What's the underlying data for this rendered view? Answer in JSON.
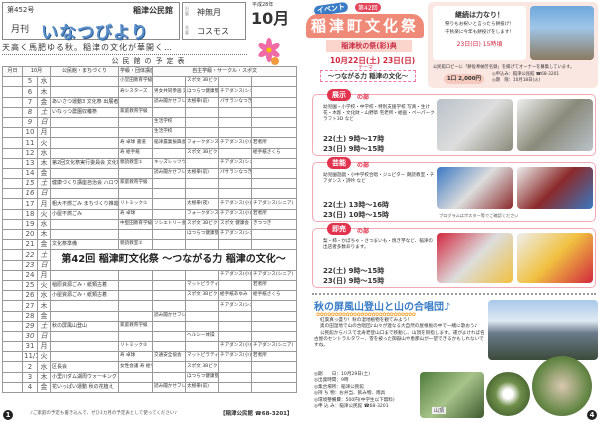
{
  "left": {
    "issue": "第452号",
    "kominkan": "稲津公民館",
    "gekkan": "月刊",
    "title": "いなつびより",
    "calendar": {
      "month_label": "旧暦",
      "month_value": "神無月",
      "flower_label": "花暦",
      "flower_value": "コスモス",
      "era": "平成28年",
      "month": "10月"
    },
    "slogan": "天高く馬肥ゆる秋。稲津の文化が華開く…",
    "schedule_title": "公民館の予定表",
    "table": {
      "headers": [
        "月日",
        "10月",
        "",
        "公民館・まちづくり",
        "学級・団体講座",
        "自主学級・サークル・スポ文"
      ],
      "rows": [
        [
          "5",
          "水",
          "",
          "小堂田教育学級 家庭教育学級",
          "",
          "スポ文 3Bビクビー",
          "",
          ""
        ],
        [
          "6",
          "木",
          "",
          "寿シスターズ",
          "男女共同参画 実践講座",
          "ほつらつ健康塾",
          "チアダンス(シニア)",
          ""
        ],
        [
          "7",
          "金",
          "あいさつ運動3 文化祭 出展者会",
          "",
          "読み聞かせフレッシュ部",
          "太極拳(前)",
          "パサランなつぎ",
          ""
        ],
        [
          "8",
          "土",
          "いなっつ農園収穫祭",
          "家庭教育学級",
          "",
          "",
          "",
          ""
        ],
        [
          "9",
          "日",
          "",
          "",
          "生活学校",
          "",
          "",
          ""
        ],
        [
          "10",
          "月",
          "",
          "",
          "生活学校",
          "",
          "",
          ""
        ],
        [
          "11",
          "火",
          "",
          "寿 卓球 書道",
          "稲津農業振興会",
          "フォークダンス マットピラティス",
          "チアダンス(小)",
          "若者所"
        ],
        [
          "12",
          "水",
          "",
          "寿 絵手紙",
          "",
          "スポ文 3Bビクビー",
          "",
          "絵手紙さくら"
        ],
        [
          "13",
          "木",
          "第2回文化祭実行委員会 文化祭 展示搬入",
          "親読教室①",
          "キッズレッツウォーク",
          "",
          "チアダンス(シニア)",
          ""
        ],
        [
          "14",
          "金",
          "",
          "",
          "読み聞かせフレッシュ部",
          "太極拳(前)",
          "パサランなつぎ",
          ""
        ],
        [
          "15",
          "土",
          "健康づくり講座自治会 ハロウィンのEクッキング",
          "家庭教育学級",
          "",
          "",
          "",
          ""
        ],
        [
          "16",
          "日",
          "",
          "",
          "",
          "",
          "",
          ""
        ],
        [
          "17",
          "月",
          "粗大不燃ごみ まちづくり推進委員会",
          "リトミック①",
          "",
          "太極拳(夜)",
          "チアダンス(小)",
          "チアダンス(シニア)"
        ],
        [
          "18",
          "火",
          "小屋不燃ごみ",
          "寿 卓球",
          "",
          "フォークダンス マットピラティス",
          "チアダンス(小)",
          "若者所"
        ],
        [
          "19",
          "水",
          "",
          "中堅田教育学級 寿 絵手紙",
          "ソシエトリー会議",
          "スポ文 3Bビクビー",
          "スポ文 健康会",
          "きつつき"
        ],
        [
          "20",
          "木",
          "",
          "",
          "",
          "ほつらつ健康塾",
          "チアダンス(シニア)",
          ""
        ],
        [
          "21",
          "金",
          "文化祭準備",
          "親読教室②",
          "",
          "",
          "",
          ""
        ],
        [
          "22",
          "土"
        ],
        [
          "23",
          "日"
        ],
        [
          "24",
          "月",
          "",
          "",
          "",
          "",
          "チアダンス(小)",
          "チアダンス(シニア)"
        ],
        [
          "25",
          "火",
          "稲原資源ごみ・紙類古着",
          "",
          "",
          "マットピラティス",
          "",
          "若者所"
        ],
        [
          "26",
          "水",
          "小屋資源ごみ・紙類古着",
          "",
          "",
          "スポ文 3Bビクビー",
          "絵手紙あゆみ",
          "絵手紙さくら"
        ],
        [
          "27",
          "木",
          "",
          "",
          "",
          "",
          "チアダンス(シニア)",
          ""
        ],
        [
          "28",
          "金",
          "",
          "",
          "読み聞かせフレッシュ部",
          "",
          "",
          ""
        ],
        [
          "29",
          "土",
          "秋の屏風山登山",
          "家庭教育学級",
          "",
          "",
          "",
          ""
        ],
        [
          "30",
          "日",
          "",
          "",
          "",
          "ヘルシー体操",
          "",
          ""
        ],
        [
          "31",
          "月",
          "",
          "リトミック②",
          "",
          "",
          "チアダンス(小)",
          "チアダンス(シニア)"
        ],
        [
          "11/1",
          "火",
          "",
          "寿 卓球",
          "交通安全協会",
          "マットピラティス",
          "チアダンス(小)",
          "若者所"
        ],
        [
          "2",
          "水",
          "区長会",
          "女性会議 寿 絵手紙",
          "",
          "スポ文 3Bビクビー",
          "",
          ""
        ],
        [
          "3",
          "木",
          "小里川ダム湖周ウォーキング",
          "",
          "",
          "ほつらつ健康塾",
          "",
          ""
        ],
        [
          "4",
          "金",
          "花いっぱい運動 秋の花植え",
          "",
          "読み聞かせフレッシュ部",
          "太極拳(前)",
          "",
          ""
        ]
      ],
      "banner": "第42回 稲津町文化祭 〜つながる力 稲津の文化〜"
    },
    "footer_note": "♪ご家庭の予定も書き込んで、ぜひ1カ月の予定表として使ってください♪",
    "footer_contact": "【稲津公民館 ☎68-3201】",
    "page_number": "1"
  },
  "right": {
    "event_label": "イベント",
    "edition": "第42回",
    "festival": "稲津町文化祭",
    "subtitle": "稲津秋の祭(彩)典",
    "dates": "10月22日(土) 23日(日)",
    "theme_label": "テーマ",
    "theme": "〜つながる力 稲津の文化〜",
    "mochi": {
      "heading": "継続は力なり！",
      "text1": "祭りもお祝いと言ったら餅投げ！",
      "text2": "千秋楽に今年も餅投げをします！",
      "time": "23日(日) 15時頃",
      "note": "公民館ロビーに「餅投奉納芳名録」を掲げてオーナーを募集しています。",
      "price": "1口 2,000円",
      "apply": "◎申込み：稲津公民館 ☎68-3201",
      "deadline": "◎期　限：10月18日(火)"
    },
    "sections": [
      {
        "badge": "展示",
        "suffix": "の部",
        "desc": "幼児園・小学校・中学校・特別支援学校 写真・生け花・木彫・文化財・山野草 宅老所・絵画・ペーパークラフト3D など",
        "time1": "22(土) 9時〜17時",
        "time2": "23(日) 9時〜15時",
        "note": ""
      },
      {
        "badge": "芸能",
        "suffix": "の部",
        "desc": "幼児園遊戯・小中学校合唱・ジュピター 朗読教室・チアダンス・詩吟 など",
        "time1": "22(土) 13時〜16時",
        "time2": "23(日) 10時〜15時",
        "note": "プログラムはポスター等でご確認ください"
      },
      {
        "badge": "即売",
        "suffix": "の部",
        "desc": "梨・柿・かぼちゃ・さつまいも・焼き芋など、稲津の出店者多数あります。",
        "time1": "22(土) 9時〜15時",
        "time2": "23(日) 9時〜15時",
        "note": ""
      }
    ],
    "hike": {
      "title": "秋の屏風山登山と山の合唱団♪",
      "p1": "紅葉真っ盛り！秋の湿地植物を観てみよう！",
      "p2": "奥の田湿地で山の合唱団♪山々が連なる大自然の屋根板の中で一緒に歌おう♪",
      "p3": "公民館からバスで北寿老登山口まで移動し、山頂を目指します。運がよければ名古屋のセントラルタワー、雪を被った御嶽山や恵那山が一望できるかもしれないですね。",
      "info": [
        "◎期　　日：10月29日(土)",
        "◎出発時間：9時",
        "◎集合場所：稲津公民館",
        "◎持 ち 物：お弁当、飲み物、雨具",
        "◎環境整備費：500円(中学生以下無料)",
        "◎申 込 み：稲津公民館 ☎68-3201"
      ],
      "sign": "山頂"
    },
    "page_number": "4"
  },
  "colors": {
    "accent_red": "#e2334e",
    "accent_blue": "#3a7dc6",
    "pink_bg": "#fbe7e2"
  }
}
